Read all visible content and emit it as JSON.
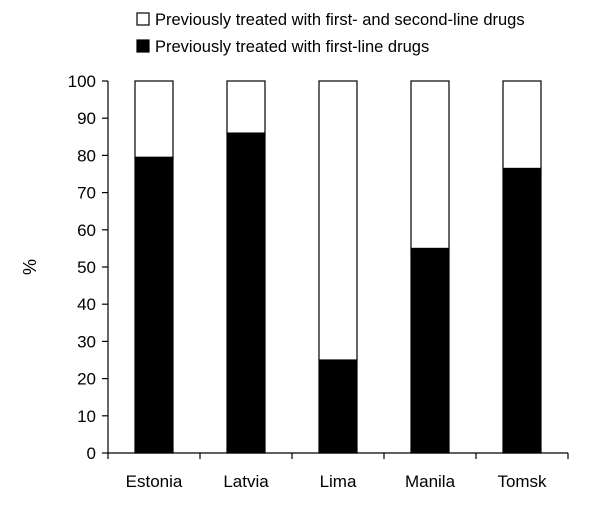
{
  "chart_data": {
    "type": "bar",
    "stacked": true,
    "title": "",
    "xlabel": "",
    "ylabel": "%",
    "ylim": [
      0,
      100
    ],
    "yticks": [
      0,
      10,
      20,
      30,
      40,
      50,
      60,
      70,
      80,
      90,
      100
    ],
    "grid": false,
    "legend_position": "top",
    "categories": [
      "Estonia",
      "Latvia",
      "Lima",
      "Manila",
      "Tomsk"
    ],
    "series": [
      {
        "name": "Previously treated with first-line drugs",
        "color": "#000000",
        "values": [
          79.5,
          86,
          25,
          55,
          76.5
        ]
      },
      {
        "name": "Previously treated with first- and second-line drugs",
        "color": "#ffffff",
        "values": [
          20.5,
          14,
          75,
          45,
          23.5
        ]
      }
    ],
    "legend_order": [
      1,
      0
    ]
  }
}
